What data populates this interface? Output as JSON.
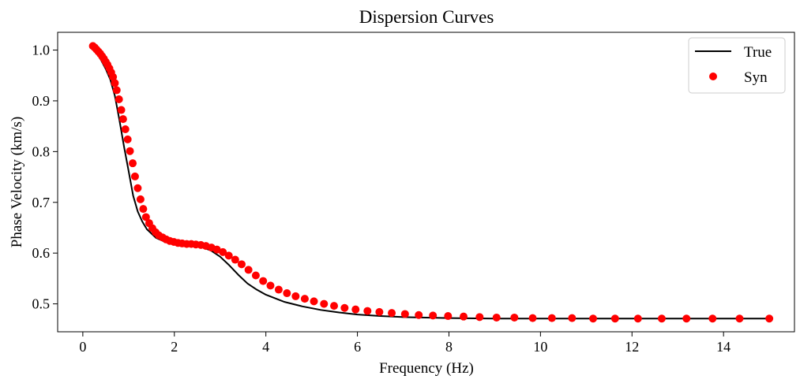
{
  "chart_data": {
    "type": "line",
    "title": "Dispersion Curves",
    "xlabel": "Frequency (Hz)",
    "ylabel": "Phase Velocity (km/s)",
    "xlim": [
      -0.55,
      15.55
    ],
    "ylim": [
      0.445,
      1.035
    ],
    "xticks": [
      0,
      2,
      4,
      6,
      8,
      10,
      12,
      14
    ],
    "yticks": [
      0.5,
      0.6,
      0.7,
      0.8,
      0.9,
      1.0
    ],
    "xtick_labels": [
      "0",
      "2",
      "4",
      "6",
      "8",
      "10",
      "12",
      "14"
    ],
    "ytick_labels": [
      "0.5",
      "0.6",
      "0.7",
      "0.8",
      "0.9",
      "1.0"
    ],
    "grid": false,
    "legend_position": "top-right",
    "series": [
      {
        "name": "True",
        "style": "line",
        "color": "#000000",
        "x": [
          0.2,
          0.3,
          0.4,
          0.5,
          0.6,
          0.7,
          0.8,
          0.9,
          1.0,
          1.1,
          1.2,
          1.3,
          1.4,
          1.6,
          1.8,
          2.0,
          2.2,
          2.4,
          2.6,
          2.8,
          3.0,
          3.2,
          3.4,
          3.6,
          3.8,
          4.0,
          4.4,
          4.8,
          5.2,
          5.6,
          6.0,
          6.5,
          7.0,
          7.5,
          8.0,
          9.0,
          10.0,
          11.0,
          12.0,
          13.0,
          14.0,
          15.0
        ],
        "y": [
          1.008,
          0.995,
          0.98,
          0.963,
          0.942,
          0.91,
          0.862,
          0.81,
          0.762,
          0.713,
          0.682,
          0.662,
          0.647,
          0.63,
          0.622,
          0.619,
          0.618,
          0.616,
          0.612,
          0.605,
          0.593,
          0.576,
          0.557,
          0.54,
          0.528,
          0.518,
          0.504,
          0.495,
          0.488,
          0.483,
          0.479,
          0.476,
          0.474,
          0.473,
          0.472,
          0.471,
          0.471,
          0.471,
          0.471,
          0.471,
          0.471,
          0.471
        ]
      },
      {
        "name": "Syn",
        "style": "markers",
        "color": "#ff0000",
        "x": [
          0.22,
          0.26,
          0.3,
          0.34,
          0.38,
          0.42,
          0.46,
          0.5,
          0.54,
          0.58,
          0.62,
          0.66,
          0.7,
          0.74,
          0.79,
          0.84,
          0.88,
          0.93,
          0.98,
          1.03,
          1.09,
          1.14,
          1.2,
          1.26,
          1.32,
          1.38,
          1.45,
          1.52,
          1.59,
          1.66,
          1.74,
          1.82,
          1.9,
          1.99,
          2.08,
          2.17,
          2.27,
          2.37,
          2.47,
          2.58,
          2.69,
          2.81,
          2.93,
          3.06,
          3.19,
          3.33,
          3.47,
          3.62,
          3.78,
          3.94,
          4.1,
          4.28,
          4.46,
          4.65,
          4.85,
          5.05,
          5.27,
          5.49,
          5.72,
          5.96,
          6.22,
          6.48,
          6.75,
          7.04,
          7.34,
          7.65,
          7.98,
          8.32,
          8.67,
          9.04,
          9.43,
          9.83,
          10.25,
          10.69,
          11.15,
          11.63,
          12.13,
          12.65,
          13.19,
          13.76,
          14.35,
          15.0
        ],
        "y": [
          1.008,
          1.005,
          1.001,
          0.997,
          0.993,
          0.988,
          0.983,
          0.977,
          0.971,
          0.964,
          0.956,
          0.947,
          0.935,
          0.921,
          0.903,
          0.882,
          0.864,
          0.844,
          0.824,
          0.801,
          0.777,
          0.751,
          0.728,
          0.706,
          0.687,
          0.671,
          0.659,
          0.649,
          0.641,
          0.635,
          0.631,
          0.627,
          0.624,
          0.622,
          0.62,
          0.619,
          0.618,
          0.618,
          0.617,
          0.616,
          0.614,
          0.611,
          0.607,
          0.602,
          0.595,
          0.587,
          0.578,
          0.567,
          0.556,
          0.545,
          0.536,
          0.528,
          0.521,
          0.515,
          0.51,
          0.505,
          0.5,
          0.496,
          0.492,
          0.489,
          0.486,
          0.484,
          0.482,
          0.48,
          0.478,
          0.477,
          0.476,
          0.475,
          0.474,
          0.473,
          0.473,
          0.472,
          0.472,
          0.472,
          0.471,
          0.471,
          0.471,
          0.471,
          0.471,
          0.471,
          0.471,
          0.471
        ]
      }
    ]
  }
}
